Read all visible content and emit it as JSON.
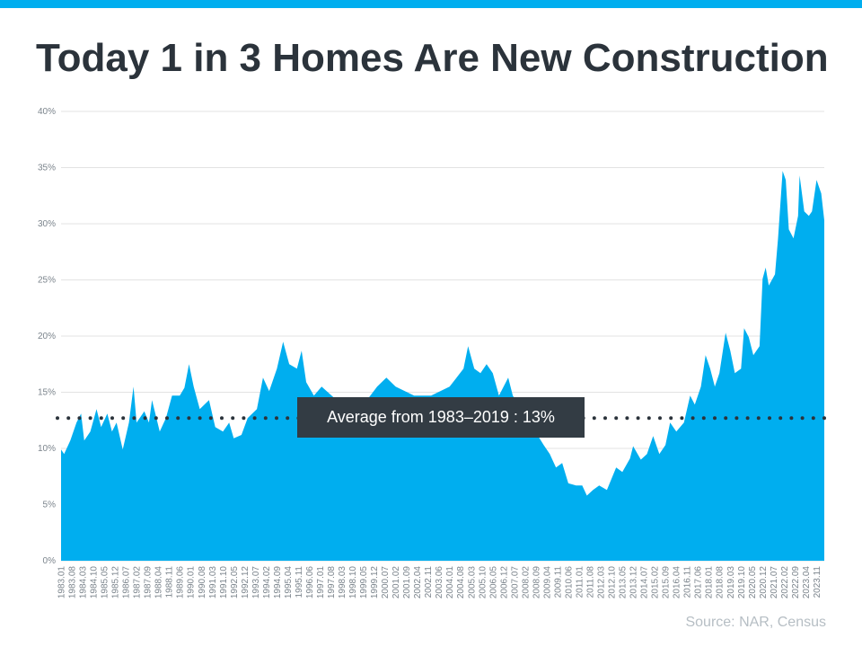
{
  "title": "Today 1 in 3 Homes Are New Construction",
  "source": "Source: NAR, Census",
  "colors": {
    "top_bar": "#00aeef",
    "area": "#00aeef",
    "title": "#2b333b",
    "annotation_bg": "#333c44",
    "grid": "#e3e3e3",
    "average_line": "#2b333b"
  },
  "chart_data": {
    "type": "area",
    "title": "",
    "xlabel": "",
    "ylabel": "",
    "ylim": [
      0,
      40
    ],
    "xlim": [
      "1983.01",
      "2024.04"
    ],
    "grid": true,
    "y_ticks": [
      "0%",
      "5%",
      "10%",
      "15%",
      "20%",
      "25%",
      "30%",
      "35%",
      "40%"
    ],
    "x_ticks": [
      "1983.01",
      "1983.08",
      "1984.03",
      "1984.10",
      "1985.05",
      "1985.12",
      "1986.07",
      "1987.02",
      "1987.09",
      "1988.04",
      "1988.11",
      "1989.06",
      "1990.01",
      "1990.08",
      "1991.03",
      "1991.10",
      "1992.05",
      "1992.12",
      "1993.07",
      "1994.02",
      "1994.09",
      "1995.04",
      "1995.11",
      "1996.06",
      "1997.01",
      "1997.08",
      "1998.03",
      "1998.10",
      "1999.05",
      "1999.12",
      "2000.07",
      "2001.02",
      "2001.09",
      "2002.04",
      "2002.11",
      "2003.06",
      "2004.01",
      "2004.08",
      "2005.03",
      "2005.10",
      "2006.05",
      "2006.12",
      "2007.07",
      "2008.02",
      "2008.09",
      "2009.04",
      "2009.11",
      "2010.06",
      "2011.01",
      "2011.08",
      "2012.03",
      "2012.10",
      "2013.05",
      "2013.12",
      "2014.07",
      "2015.02",
      "2015.09",
      "2016.04",
      "2016.11",
      "2017.06",
      "2018.01",
      "2018.08",
      "2019.03",
      "2019.10",
      "2020.05",
      "2020.12",
      "2021.07",
      "2022.02",
      "2022.09",
      "2023.04",
      "2023.11"
    ],
    "points": [
      [
        "1983.01",
        9.9
      ],
      [
        "1983.03",
        9.5
      ],
      [
        "1983.07",
        10.7
      ],
      [
        "1983.11",
        12.3
      ],
      [
        "1984.02",
        13.1
      ],
      [
        "1984.04",
        10.7
      ],
      [
        "1984.08",
        11.5
      ],
      [
        "1984.12",
        13.5
      ],
      [
        "1985.03",
        11.9
      ],
      [
        "1985.07",
        13.1
      ],
      [
        "1985.10",
        11.5
      ],
      [
        "1986.01",
        12.3
      ],
      [
        "1986.05",
        9.9
      ],
      [
        "1986.09",
        12.3
      ],
      [
        "1986.12",
        15.5
      ],
      [
        "1987.02",
        12.3
      ],
      [
        "1987.07",
        13.3
      ],
      [
        "1987.10",
        12.3
      ],
      [
        "1987.12",
        14.3
      ],
      [
        "1988.05",
        11.5
      ],
      [
        "1988.09",
        12.7
      ],
      [
        "1989.01",
        14.7
      ],
      [
        "1989.06",
        14.7
      ],
      [
        "1989.09",
        15.4
      ],
      [
        "1989.12",
        17.5
      ],
      [
        "1990.03",
        15.5
      ],
      [
        "1990.07",
        13.5
      ],
      [
        "1991.01",
        14.3
      ],
      [
        "1991.05",
        11.9
      ],
      [
        "1991.10",
        11.5
      ],
      [
        "1992.02",
        12.3
      ],
      [
        "1992.05",
        10.9
      ],
      [
        "1992.10",
        11.2
      ],
      [
        "1993.02",
        12.7
      ],
      [
        "1993.08",
        13.5
      ],
      [
        "1993.12",
        16.3
      ],
      [
        "1994.04",
        15.1
      ],
      [
        "1994.09",
        17.1
      ],
      [
        "1995.01",
        19.5
      ],
      [
        "1995.05",
        17.5
      ],
      [
        "1995.10",
        17.1
      ],
      [
        "1996.01",
        18.7
      ],
      [
        "1996.04",
        15.9
      ],
      [
        "1996.09",
        14.7
      ],
      [
        "1997.02",
        15.5
      ],
      [
        "1998.03",
        13.9
      ],
      [
        "1999.03",
        13.5
      ],
      [
        "2000.02",
        15.5
      ],
      [
        "2000.08",
        16.3
      ],
      [
        "2001.02",
        15.5
      ],
      [
        "2002.02",
        14.7
      ],
      [
        "2003.01",
        14.7
      ],
      [
        "2004.01",
        15.5
      ],
      [
        "2004.10",
        17.1
      ],
      [
        "2005.01",
        19.1
      ],
      [
        "2005.05",
        17.1
      ],
      [
        "2005.09",
        16.7
      ],
      [
        "2006.01",
        17.5
      ],
      [
        "2006.05",
        16.7
      ],
      [
        "2006.09",
        14.7
      ],
      [
        "2007.03",
        16.3
      ],
      [
        "2007.06",
        14.7
      ],
      [
        "2008.05",
        12.3
      ],
      [
        "2009.02",
        10.3
      ],
      [
        "2009.06",
        9.5
      ],
      [
        "2009.10",
        8.3
      ],
      [
        "2010.02",
        8.7
      ],
      [
        "2010.06",
        6.9
      ],
      [
        "2010.11",
        6.7
      ],
      [
        "2011.03",
        6.7
      ],
      [
        "2011.06",
        5.8
      ],
      [
        "2011.10",
        6.3
      ],
      [
        "2012.02",
        6.7
      ],
      [
        "2012.07",
        6.3
      ],
      [
        "2013.01",
        8.3
      ],
      [
        "2013.05",
        7.9
      ],
      [
        "2013.10",
        9.1
      ],
      [
        "2013.12",
        10.2
      ],
      [
        "2014.05",
        9.0
      ],
      [
        "2014.09",
        9.5
      ],
      [
        "2015.01",
        11.1
      ],
      [
        "2015.05",
        9.5
      ],
      [
        "2015.09",
        10.3
      ],
      [
        "2015.12",
        12.3
      ],
      [
        "2016.04",
        11.5
      ],
      [
        "2016.09",
        12.3
      ],
      [
        "2017.01",
        14.7
      ],
      [
        "2017.04",
        13.9
      ],
      [
        "2017.08",
        15.5
      ],
      [
        "2017.11",
        18.3
      ],
      [
        "2018.02",
        17.1
      ],
      [
        "2018.05",
        15.5
      ],
      [
        "2018.08",
        16.7
      ],
      [
        "2018.12",
        20.3
      ],
      [
        "2019.03",
        18.7
      ],
      [
        "2019.06",
        16.7
      ],
      [
        "2019.10",
        17.1
      ],
      [
        "2019.12",
        20.7
      ],
      [
        "2020.03",
        19.9
      ],
      [
        "2020.06",
        18.3
      ],
      [
        "2020.10",
        19.1
      ],
      [
        "2020.12",
        25.1
      ],
      [
        "2021.02",
        26.1
      ],
      [
        "2021.04",
        24.5
      ],
      [
        "2021.08",
        25.5
      ],
      [
        "2021.10",
        28.7
      ],
      [
        "2022.01",
        34.7
      ],
      [
        "2022.03",
        33.9
      ],
      [
        "2022.05",
        29.5
      ],
      [
        "2022.08",
        28.7
      ],
      [
        "2022.11",
        30.7
      ],
      [
        "2022.12",
        34.3
      ],
      [
        "2023.03",
        31.1
      ],
      [
        "2023.06",
        30.7
      ],
      [
        "2023.08",
        31.1
      ],
      [
        "2023.11",
        33.9
      ],
      [
        "2024.02",
        32.7
      ],
      [
        "2024.04",
        30.3
      ]
    ],
    "average_value": 12.7,
    "annotation": "Average from 1983–2019 : 13%"
  }
}
